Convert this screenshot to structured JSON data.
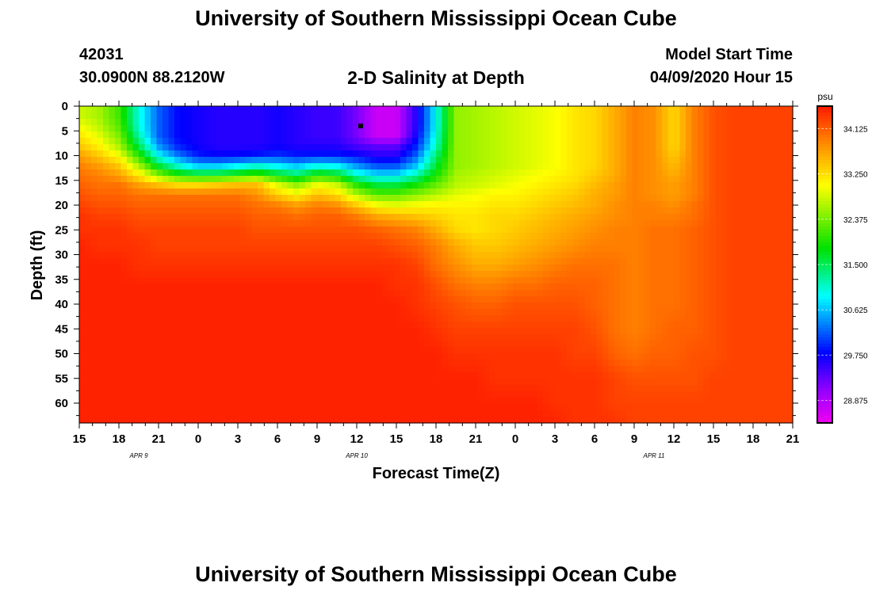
{
  "page": {
    "title_top": "University of Southern Mississippi Ocean Cube",
    "title_bottom": "University of Southern Mississippi Ocean Cube",
    "station_id": "42031",
    "station_coords": "30.0900N 88.2120W",
    "plot_title": "2-D Salinity at Depth",
    "model_start_label": "Model Start Time",
    "model_start_value": "04/09/2020 Hour 15"
  },
  "chart_data": {
    "type": "heatmap",
    "title": "2-D Salinity at Depth",
    "xlabel": "Forecast Time(Z)",
    "ylabel": "Depth (ft)",
    "x_tick_labels": [
      "15",
      "18",
      "21",
      "0",
      "3",
      "6",
      "9",
      "12",
      "15",
      "18",
      "21",
      "0",
      "3",
      "6",
      "9",
      "12",
      "15",
      "18",
      "21"
    ],
    "x_range_hours": [
      0,
      54
    ],
    "date_labels": [
      {
        "label": "APR 9",
        "hour": 4.5
      },
      {
        "label": "APR 10",
        "hour": 21
      },
      {
        "label": "APR 11",
        "hour": 43.5
      }
    ],
    "y_tick_labels": [
      "0",
      "5",
      "10",
      "15",
      "20",
      "25",
      "30",
      "35",
      "40",
      "45",
      "50",
      "55",
      "60"
    ],
    "y_range_ft": [
      0,
      64
    ],
    "colorbar": {
      "unit": "psu",
      "tick_labels": [
        "34.125",
        "33.250",
        "32.375",
        "31.500",
        "30.625",
        "29.750",
        "28.875"
      ],
      "ticks": [
        34.125,
        33.25,
        32.375,
        31.5,
        30.625,
        29.75,
        28.875
      ],
      "range": [
        28.44,
        34.56
      ]
    },
    "hours": [
      0,
      1.5,
      3,
      4.5,
      6,
      7.5,
      9,
      10.5,
      12,
      13.5,
      15,
      16.5,
      18,
      19.5,
      21,
      22.5,
      24,
      25.5,
      27,
      28.5,
      30,
      31.5,
      33,
      34.5,
      36,
      37.5,
      39,
      40.5,
      42,
      43.5,
      45,
      46.5,
      48,
      49.5,
      51,
      52.5,
      54
    ],
    "depths_ft": [
      0,
      2,
      4,
      6,
      8,
      10,
      12,
      14,
      16,
      18,
      20,
      22,
      25,
      28,
      32,
      36,
      40,
      45,
      50,
      55,
      60,
      64
    ],
    "salinity_psu": [
      [
        32.8,
        32.6,
        32.1,
        31.0,
        30.2,
        29.8,
        29.7,
        29.6,
        29.6,
        29.6,
        29.7,
        29.6,
        29.5,
        29.5,
        29.2,
        28.7,
        28.7,
        29.6,
        30.9,
        32.5,
        32.6,
        32.7,
        32.8,
        32.9,
        33.0,
        33.2,
        33.3,
        33.6,
        33.9,
        33.8,
        33.3,
        33.9,
        34.2,
        34.3,
        34.3,
        34.3,
        34.3
      ],
      [
        32.8,
        32.6,
        32.1,
        31.0,
        30.2,
        29.8,
        29.7,
        29.6,
        29.6,
        29.6,
        29.7,
        29.6,
        29.5,
        29.5,
        29.2,
        28.7,
        28.7,
        29.6,
        30.9,
        32.5,
        32.6,
        32.7,
        32.8,
        32.9,
        33.0,
        33.2,
        33.3,
        33.6,
        33.9,
        33.8,
        33.3,
        33.9,
        34.2,
        34.3,
        34.3,
        34.3,
        34.3
      ],
      [
        33.0,
        32.7,
        32.2,
        31.0,
        30.2,
        29.8,
        29.7,
        29.6,
        29.6,
        29.6,
        29.7,
        29.6,
        29.5,
        29.5,
        29.2,
        28.7,
        28.7,
        29.6,
        30.9,
        32.5,
        32.6,
        32.7,
        32.8,
        32.9,
        33.0,
        33.2,
        33.3,
        33.6,
        33.9,
        33.8,
        33.3,
        33.9,
        34.2,
        34.3,
        34.3,
        34.3,
        34.3
      ],
      [
        33.2,
        32.9,
        32.4,
        31.2,
        30.2,
        29.8,
        29.7,
        29.6,
        29.6,
        29.6,
        29.7,
        29.6,
        29.5,
        29.5,
        29.2,
        28.7,
        28.7,
        29.7,
        31.0,
        32.5,
        32.6,
        32.7,
        32.8,
        32.9,
        33.0,
        33.2,
        33.3,
        33.6,
        33.9,
        33.8,
        33.3,
        33.9,
        34.2,
        34.3,
        34.3,
        34.3,
        34.3
      ],
      [
        33.4,
        33.1,
        32.6,
        31.5,
        30.4,
        29.9,
        29.7,
        29.6,
        29.6,
        29.6,
        29.7,
        29.6,
        29.6,
        29.6,
        29.4,
        29.3,
        29.3,
        29.9,
        31.1,
        32.5,
        32.6,
        32.7,
        32.8,
        32.9,
        33.0,
        33.2,
        33.3,
        33.6,
        33.9,
        33.8,
        33.3,
        33.9,
        34.2,
        34.3,
        34.3,
        34.3,
        34.3
      ],
      [
        33.7,
        33.4,
        33.0,
        32.0,
        30.9,
        30.3,
        29.9,
        29.8,
        29.8,
        29.9,
        30.0,
        29.9,
        29.9,
        29.9,
        29.8,
        29.6,
        29.6,
        30.2,
        31.4,
        32.5,
        32.6,
        32.7,
        32.8,
        32.9,
        33.0,
        33.2,
        33.3,
        33.6,
        33.9,
        33.8,
        33.4,
        33.9,
        34.2,
        34.3,
        34.3,
        34.3,
        34.3
      ],
      [
        33.9,
        33.7,
        33.4,
        32.6,
        31.6,
        31.0,
        30.6,
        30.6,
        30.8,
        31.0,
        30.8,
        30.6,
        30.9,
        30.8,
        30.4,
        30.1,
        30.1,
        30.6,
        31.6,
        32.5,
        32.6,
        32.7,
        32.8,
        32.9,
        33.0,
        33.2,
        33.3,
        33.6,
        33.9,
        33.8,
        33.5,
        33.9,
        34.2,
        34.3,
        34.3,
        34.3,
        34.3
      ],
      [
        34.0,
        33.9,
        33.7,
        33.2,
        32.5,
        32.0,
        31.8,
        31.8,
        32.0,
        32.2,
        31.8,
        31.5,
        32.0,
        31.8,
        31.1,
        30.8,
        30.8,
        31.2,
        31.9,
        32.6,
        32.7,
        32.8,
        32.9,
        33.0,
        33.1,
        33.2,
        33.4,
        33.6,
        33.9,
        33.8,
        33.6,
        33.9,
        34.2,
        34.3,
        34.3,
        34.3,
        34.3
      ],
      [
        34.1,
        34.0,
        34.0,
        33.7,
        33.5,
        33.3,
        33.3,
        33.4,
        33.5,
        33.5,
        32.9,
        32.5,
        33.0,
        32.8,
        32.0,
        31.6,
        31.6,
        31.9,
        32.3,
        32.7,
        32.8,
        32.9,
        33.0,
        33.1,
        33.2,
        33.3,
        33.5,
        33.7,
        33.9,
        33.8,
        33.7,
        33.9,
        34.2,
        34.3,
        34.3,
        34.3,
        34.3
      ],
      [
        34.2,
        34.1,
        34.1,
        34.0,
        34.0,
        34.0,
        34.0,
        34.0,
        34.0,
        33.8,
        33.4,
        33.1,
        33.5,
        33.3,
        32.7,
        32.3,
        32.3,
        32.5,
        32.7,
        32.9,
        33.0,
        33.1,
        33.1,
        33.2,
        33.3,
        33.4,
        33.6,
        33.7,
        33.9,
        33.8,
        33.7,
        33.9,
        34.2,
        34.3,
        34.3,
        34.3,
        34.3
      ],
      [
        34.3,
        34.2,
        34.2,
        34.1,
        34.1,
        34.1,
        34.1,
        34.1,
        34.1,
        34.0,
        33.9,
        33.7,
        33.9,
        33.8,
        33.4,
        33.0,
        32.9,
        33.0,
        33.1,
        33.1,
        33.1,
        33.2,
        33.2,
        33.3,
        33.4,
        33.5,
        33.6,
        33.8,
        33.9,
        33.9,
        33.8,
        34.0,
        34.2,
        34.3,
        34.3,
        34.3,
        34.3
      ],
      [
        34.4,
        34.3,
        34.3,
        34.2,
        34.2,
        34.2,
        34.2,
        34.2,
        34.2,
        34.1,
        34.1,
        34.0,
        34.1,
        34.1,
        33.9,
        33.6,
        33.5,
        33.4,
        33.3,
        33.2,
        33.2,
        33.3,
        33.3,
        33.4,
        33.5,
        33.6,
        33.7,
        33.8,
        33.9,
        33.9,
        33.9,
        34.0,
        34.2,
        34.3,
        34.3,
        34.3,
        34.3
      ],
      [
        34.4,
        34.4,
        34.4,
        34.3,
        34.3,
        34.3,
        34.3,
        34.3,
        34.3,
        34.2,
        34.2,
        34.2,
        34.2,
        34.2,
        34.2,
        34.1,
        34.0,
        33.9,
        33.6,
        33.3,
        33.2,
        33.3,
        33.4,
        33.5,
        33.6,
        33.7,
        33.8,
        33.9,
        33.9,
        34.0,
        34.0,
        34.1,
        34.2,
        34.3,
        34.3,
        34.3,
        34.3
      ],
      [
        34.5,
        34.4,
        34.4,
        34.4,
        34.3,
        34.3,
        34.3,
        34.3,
        34.3,
        34.3,
        34.3,
        34.3,
        34.3,
        34.3,
        34.3,
        34.3,
        34.2,
        34.1,
        33.9,
        33.6,
        33.4,
        33.4,
        33.5,
        33.6,
        33.7,
        33.8,
        33.9,
        33.9,
        33.9,
        34.0,
        34.0,
        34.1,
        34.2,
        34.3,
        34.3,
        34.3,
        34.3
      ],
      [
        34.5,
        34.5,
        34.5,
        34.4,
        34.4,
        34.4,
        34.4,
        34.4,
        34.4,
        34.4,
        34.4,
        34.4,
        34.4,
        34.4,
        34.4,
        34.4,
        34.4,
        34.3,
        34.0,
        33.8,
        33.6,
        33.6,
        33.7,
        33.8,
        33.9,
        34.0,
        34.0,
        34.0,
        33.9,
        34.0,
        34.0,
        34.1,
        34.2,
        34.3,
        34.3,
        34.3,
        34.3
      ],
      [
        34.5,
        34.5,
        34.5,
        34.5,
        34.5,
        34.5,
        34.5,
        34.5,
        34.5,
        34.5,
        34.5,
        34.5,
        34.5,
        34.5,
        34.5,
        34.5,
        34.4,
        34.4,
        34.2,
        34.0,
        33.9,
        33.9,
        34.0,
        34.0,
        34.1,
        34.1,
        34.1,
        34.0,
        33.9,
        34.0,
        34.0,
        34.1,
        34.2,
        34.3,
        34.3,
        34.3,
        34.3
      ],
      [
        34.5,
        34.5,
        34.5,
        34.5,
        34.5,
        34.5,
        34.5,
        34.5,
        34.5,
        34.5,
        34.5,
        34.5,
        34.5,
        34.5,
        34.5,
        34.5,
        34.5,
        34.4,
        34.3,
        34.2,
        34.1,
        34.1,
        34.2,
        34.2,
        34.2,
        34.2,
        34.1,
        34.0,
        33.9,
        34.0,
        34.0,
        34.1,
        34.2,
        34.3,
        34.3,
        34.3,
        34.3
      ],
      [
        34.5,
        34.5,
        34.5,
        34.5,
        34.5,
        34.5,
        34.5,
        34.5,
        34.5,
        34.5,
        34.5,
        34.5,
        34.5,
        34.5,
        34.5,
        34.5,
        34.5,
        34.5,
        34.4,
        34.3,
        34.3,
        34.3,
        34.3,
        34.3,
        34.3,
        34.3,
        34.2,
        34.0,
        33.9,
        34.0,
        34.1,
        34.1,
        34.2,
        34.3,
        34.3,
        34.3,
        34.3
      ],
      [
        34.5,
        34.5,
        34.5,
        34.5,
        34.5,
        34.5,
        34.5,
        34.5,
        34.5,
        34.5,
        34.5,
        34.5,
        34.5,
        34.5,
        34.5,
        34.5,
        34.5,
        34.5,
        34.5,
        34.4,
        34.4,
        34.4,
        34.4,
        34.4,
        34.4,
        34.3,
        34.3,
        34.1,
        34.0,
        34.1,
        34.1,
        34.2,
        34.2,
        34.3,
        34.3,
        34.3,
        34.3
      ],
      [
        34.5,
        34.5,
        34.5,
        34.5,
        34.5,
        34.5,
        34.5,
        34.5,
        34.5,
        34.5,
        34.5,
        34.5,
        34.5,
        34.5,
        34.5,
        34.5,
        34.5,
        34.5,
        34.5,
        34.5,
        34.5,
        34.4,
        34.4,
        34.4,
        34.4,
        34.4,
        34.4,
        34.3,
        34.2,
        34.2,
        34.2,
        34.2,
        34.3,
        34.3,
        34.3,
        34.3,
        34.3
      ],
      [
        34.5,
        34.5,
        34.5,
        34.5,
        34.5,
        34.5,
        34.5,
        34.5,
        34.5,
        34.5,
        34.5,
        34.5,
        34.5,
        34.5,
        34.5,
        34.5,
        34.5,
        34.5,
        34.5,
        34.5,
        34.5,
        34.5,
        34.5,
        34.5,
        34.4,
        34.4,
        34.4,
        34.3,
        34.3,
        34.3,
        34.3,
        34.3,
        34.3,
        34.3,
        34.3,
        34.3,
        34.3
      ],
      [
        34.5,
        34.5,
        34.5,
        34.5,
        34.5,
        34.5,
        34.5,
        34.5,
        34.5,
        34.5,
        34.5,
        34.5,
        34.5,
        34.5,
        34.5,
        34.5,
        34.5,
        34.5,
        34.5,
        34.5,
        34.5,
        34.5,
        34.5,
        34.5,
        34.5,
        34.4,
        34.4,
        34.4,
        34.3,
        34.3,
        34.3,
        34.3,
        34.3,
        34.3,
        34.3,
        34.3,
        34.3
      ]
    ],
    "marker": {
      "hour": 21.3,
      "depth_ft": 4
    }
  }
}
